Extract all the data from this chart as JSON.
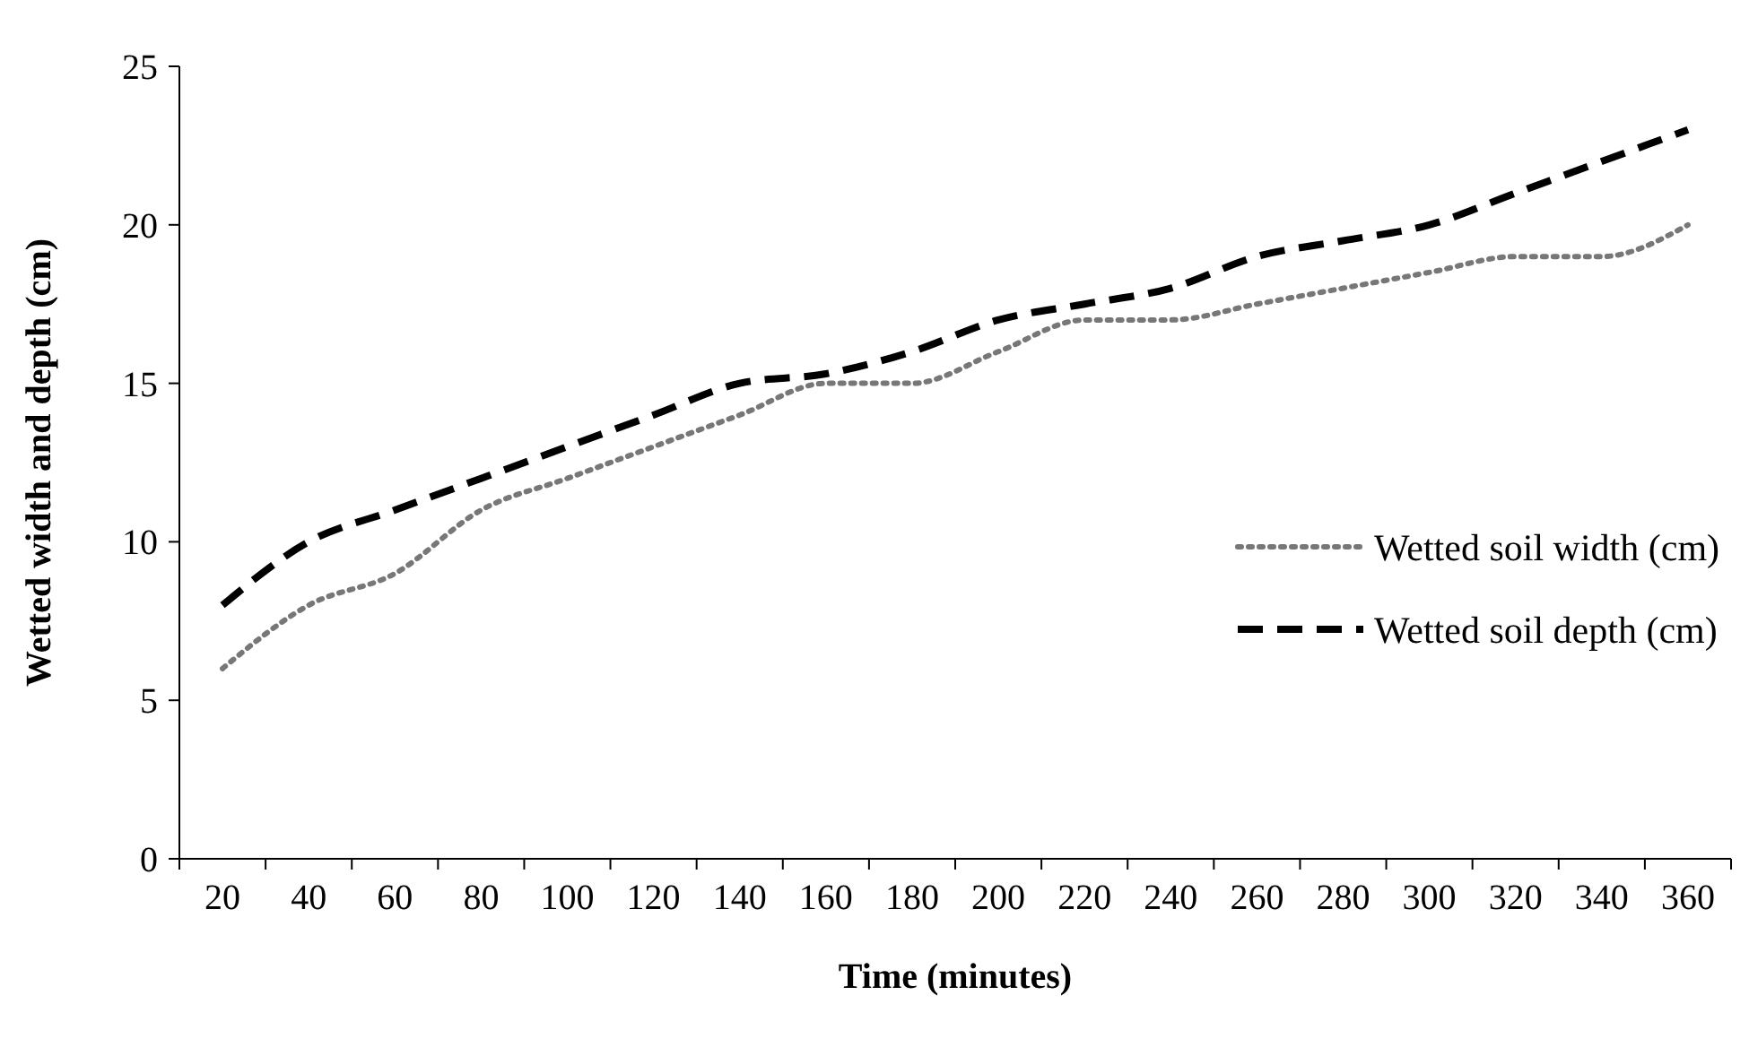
{
  "chart_data": {
    "type": "line",
    "xlabel": "Time (minutes)",
    "ylabel": "Wetted width and depth (cm)",
    "categories": [
      "20",
      "40",
      "60",
      "80",
      "100",
      "120",
      "140",
      "160",
      "180",
      "200",
      "220",
      "240",
      "260",
      "280",
      "300",
      "320",
      "340",
      "360"
    ],
    "series": [
      {
        "name": "Wetted soil width (cm)",
        "color": "#777777",
        "line_style": "dotted",
        "values": [
          6,
          8,
          9,
          11,
          12,
          13,
          14,
          15,
          15,
          16,
          17,
          17,
          17.5,
          18,
          18.5,
          19,
          19,
          20
        ]
      },
      {
        "name": "Wetted soil depth (cm)",
        "color": "#000000",
        "line_style": "dashed",
        "values": [
          8,
          10,
          11,
          12,
          13,
          14,
          15,
          15.3,
          16,
          17,
          17.5,
          18,
          19,
          19.5,
          20,
          21,
          22,
          23
        ]
      }
    ],
    "ylim": [
      0,
      25
    ],
    "yticks": [
      0,
      5,
      10,
      15,
      20,
      25
    ],
    "grid": false,
    "legend": "right"
  }
}
